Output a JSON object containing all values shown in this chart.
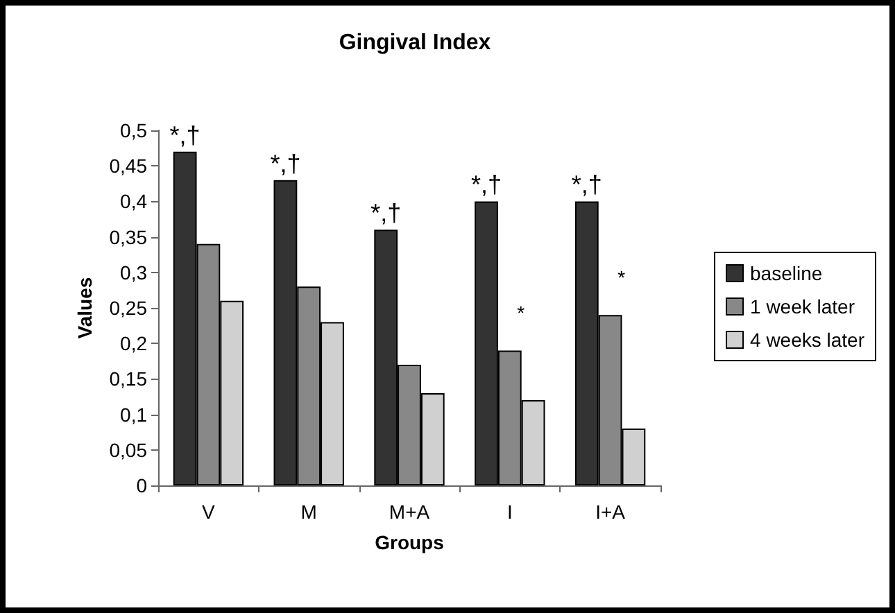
{
  "chart_data": {
    "type": "bar",
    "title": "Gingival Index",
    "xlabel": "Groups",
    "ylabel": "Values",
    "categories": [
      "V",
      "M",
      "M+A",
      "I",
      "I+A"
    ],
    "series": [
      {
        "name": "baseline",
        "color": "#333333",
        "values": [
          0.47,
          0.43,
          0.36,
          0.4,
          0.4
        ]
      },
      {
        "name": "1 week later",
        "color": "#888888",
        "values": [
          0.34,
          0.28,
          0.17,
          0.19,
          0.24
        ]
      },
      {
        "name": "4 weeks later",
        "color": "#d0d0d0",
        "values": [
          0.26,
          0.23,
          0.13,
          0.12,
          0.08
        ]
      }
    ],
    "ylim": [
      0,
      0.5
    ],
    "yticks": [
      0,
      {
        "value": 0.05,
        "label": "0,05"
      },
      {
        "value": 0.1,
        "label": "0,1"
      },
      {
        "value": 0.15,
        "label": "0,15"
      },
      {
        "value": 0.2,
        "label": "0,2"
      },
      {
        "value": 0.25,
        "label": "0,25"
      },
      {
        "value": 0.3,
        "label": "0,3"
      },
      {
        "value": 0.35,
        "label": "0,35"
      },
      {
        "value": 0.4,
        "label": "0,4"
      },
      {
        "value": 0.45,
        "label": "0,45"
      },
      {
        "value": 0.5,
        "label": "0,5"
      }
    ],
    "annotations": [
      "*,†",
      "*,†",
      "*,†",
      "*,†",
      "*,†",
      {
        "text": "*",
        "x": "I",
        "y": 0.19
      },
      {
        "text": "*",
        "x": "I+A",
        "y": 0.24
      }
    ],
    "grid": false,
    "legend": "right"
  }
}
